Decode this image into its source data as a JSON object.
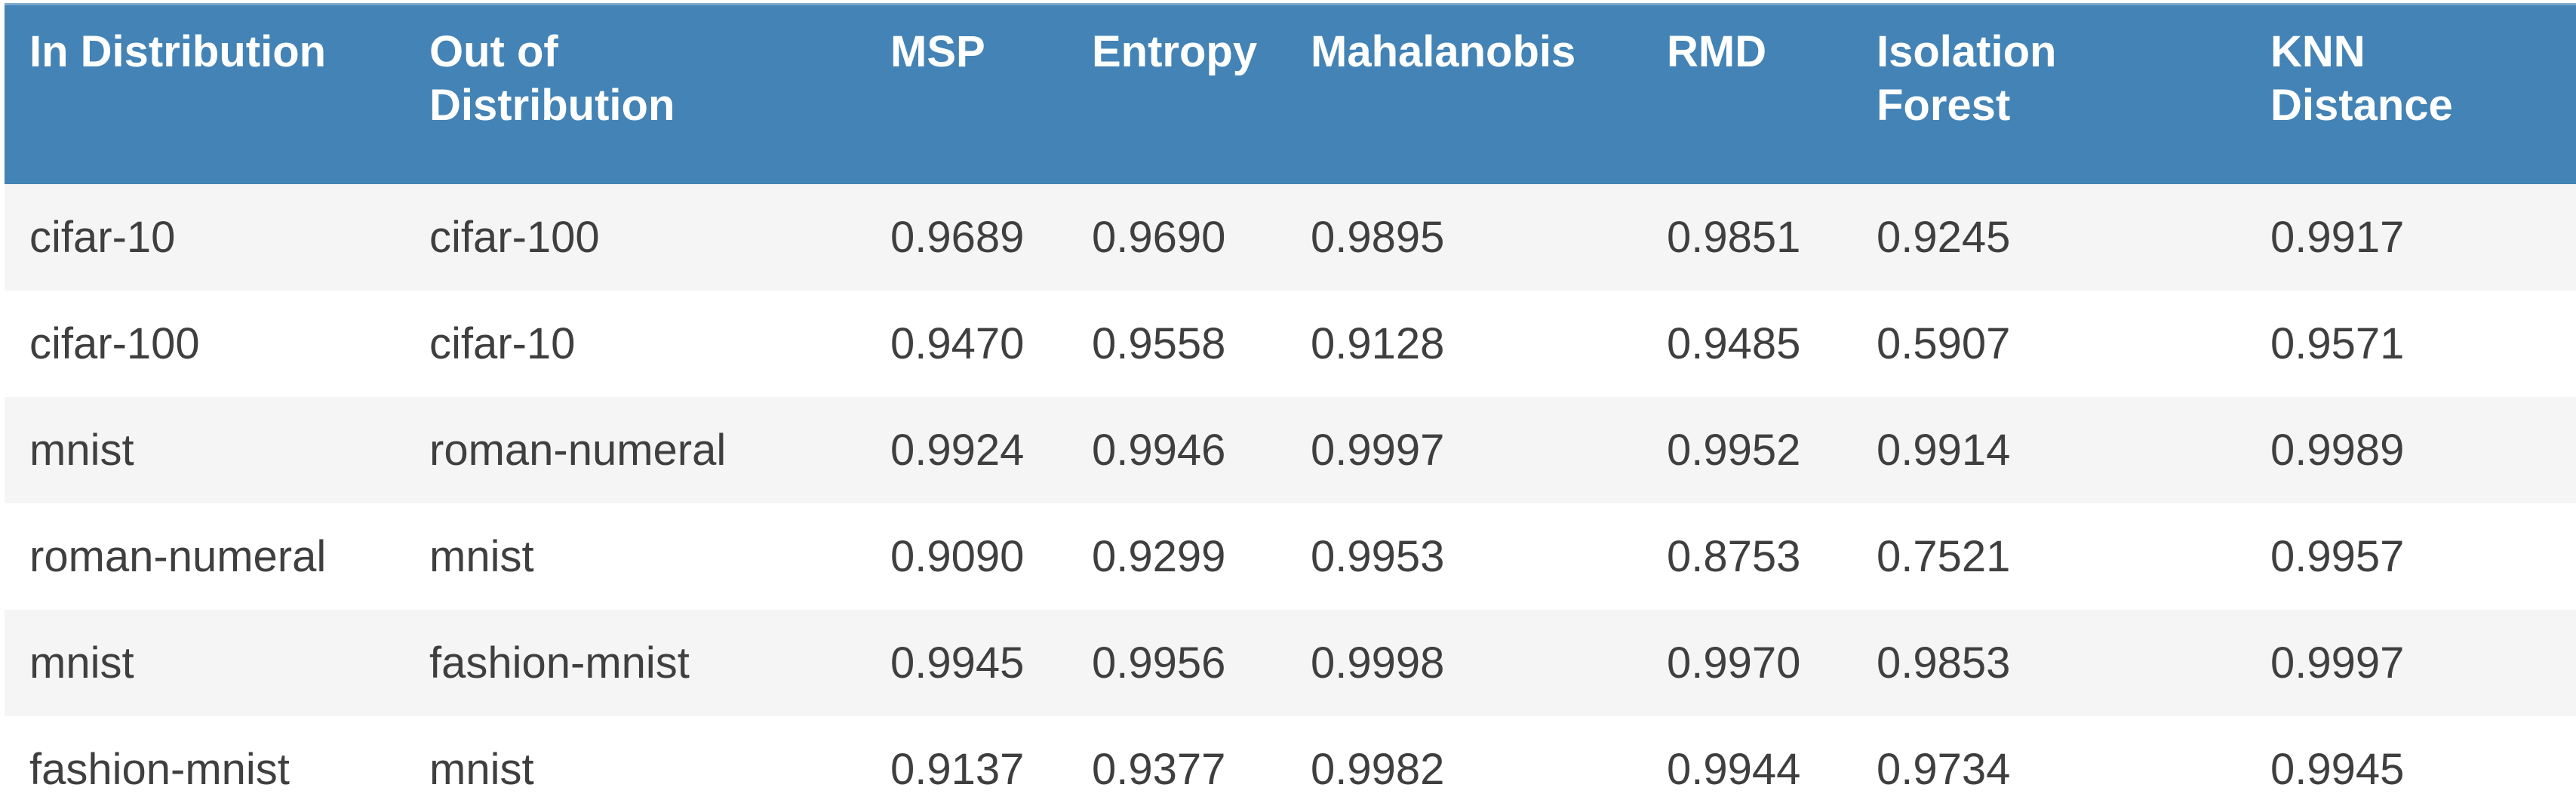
{
  "style": {
    "header_bg": "#4383b5",
    "header_top_line": "#7ea9cd",
    "header_text": "#ffffff",
    "row_alt_bg": "#f5f5f6",
    "row_bg": "#ffffff",
    "body_text": "#3f3f3f"
  },
  "chart_data": {
    "type": "table",
    "columns": [
      "In Distribution",
      "Out of Distribution",
      "MSP",
      "Entropy",
      "Mahalanobis",
      "RMD",
      "Isolation Forest",
      "KNN Distance"
    ],
    "rows": [
      [
        "cifar-10",
        "cifar-100",
        "0.9689",
        "0.9690",
        "0.9895",
        "0.9851",
        "0.9245",
        "0.9917"
      ],
      [
        "cifar-100",
        "cifar-10",
        "0.9470",
        "0.9558",
        "0.9128",
        "0.9485",
        "0.5907",
        "0.9571"
      ],
      [
        "mnist",
        "roman-numeral",
        "0.9924",
        "0.9946",
        "0.9997",
        "0.9952",
        "0.9914",
        "0.9989"
      ],
      [
        "roman-numeral",
        "mnist",
        "0.9090",
        "0.9299",
        "0.9953",
        "0.8753",
        "0.7521",
        "0.9957"
      ],
      [
        "mnist",
        "fashion-mnist",
        "0.9945",
        "0.9956",
        "0.9998",
        "0.9970",
        "0.9853",
        "0.9997"
      ],
      [
        "fashion-mnist",
        "mnist",
        "0.9137",
        "0.9377",
        "0.9982",
        "0.9944",
        "0.9734",
        "0.9945"
      ]
    ]
  }
}
